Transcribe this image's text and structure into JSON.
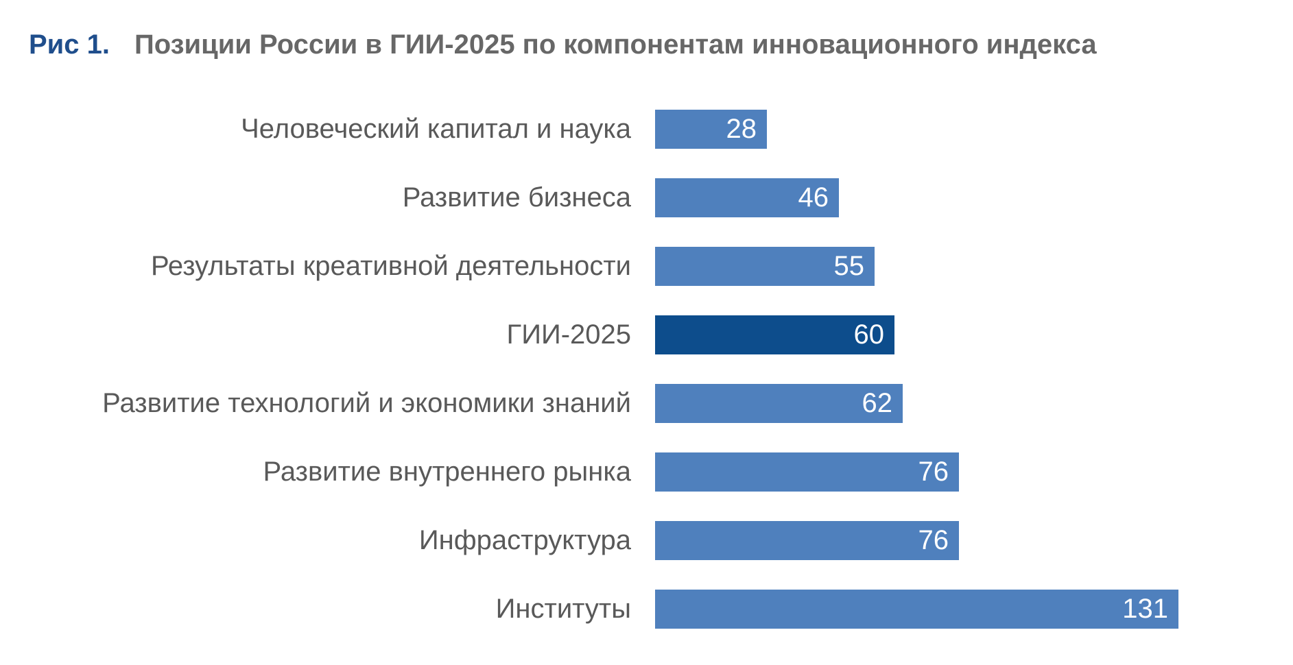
{
  "title": {
    "prefix": "Рис 1.",
    "text": "Позиции России в ГИИ-2025 по компонентам инновационного индекса"
  },
  "colors": {
    "bar": "#4f80bd",
    "bar_highlight": "#0d4d8c",
    "title_prefix": "#1f4e8c",
    "title_text": "#676767",
    "label_text": "#595959",
    "value_text": "#ffffff",
    "background": "#ffffff"
  },
  "chart_data": {
    "type": "bar",
    "orientation": "horizontal",
    "title": "Позиции России в ГИИ-2025 по компонентам инновационного индекса",
    "categories": [
      "Человеческий капитал и наука",
      "Развитие бизнеса",
      "Результаты креативной деятельности",
      "ГИИ-2025",
      "Развитие технологий и экономики знаний",
      "Развитие внутреннего рынка",
      "Инфраструктура",
      "Институты"
    ],
    "values": [
      28,
      46,
      55,
      60,
      62,
      76,
      76,
      131
    ],
    "highlight_index": 3,
    "highlight_category": "ГИИ-2025",
    "xlim": [
      0,
      131
    ],
    "value_labels": "inside-end",
    "grid": false,
    "legend": false
  }
}
